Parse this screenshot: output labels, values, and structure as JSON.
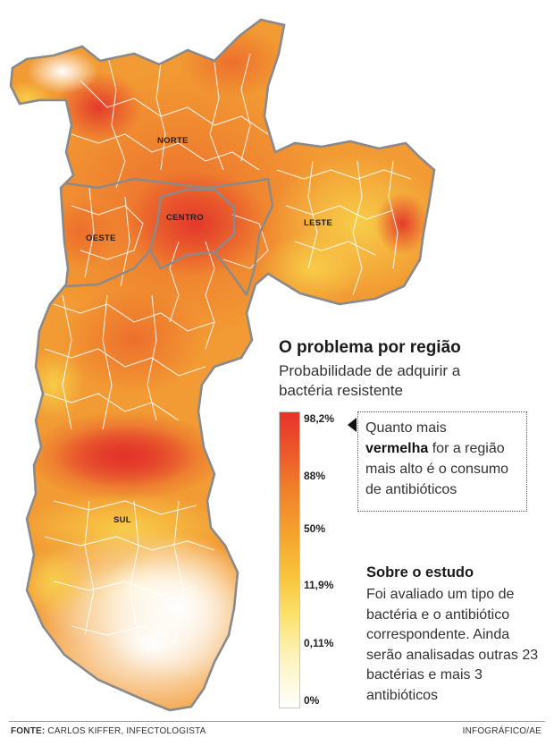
{
  "map": {
    "regions": [
      "NORTE",
      "CENTRO",
      "LESTE",
      "OESTE",
      "SUL"
    ]
  },
  "legend": {
    "title": "O problema por região",
    "subtitle": "Probabilidade de adquirir a bactéria resistente",
    "ticks": [
      "98,2%",
      "88%",
      "50%",
      "11,9%",
      "0,11%",
      "0%"
    ],
    "colors": {
      "high": "#e8322a",
      "mid": "#f4a02e",
      "low": "#fbe06a",
      "none": "#ffffff"
    }
  },
  "callout": {
    "pre": "Quanto mais",
    "highlight": "vermelha",
    "post": "for a região mais alto é o consumo de antibióticos"
  },
  "study": {
    "title": "Sobre o estudo",
    "text": "Foi avaliado um tipo de bactéria e o antibiótico correspondente. Ainda serão analisadas outras 23 bactérias e mais 3 antibióticos"
  },
  "footer": {
    "source_label": "FONTE:",
    "source": "CARLOS KIFFER, INFECTOLOGISTA",
    "credit": "INFOGRÁFICO/AE"
  }
}
